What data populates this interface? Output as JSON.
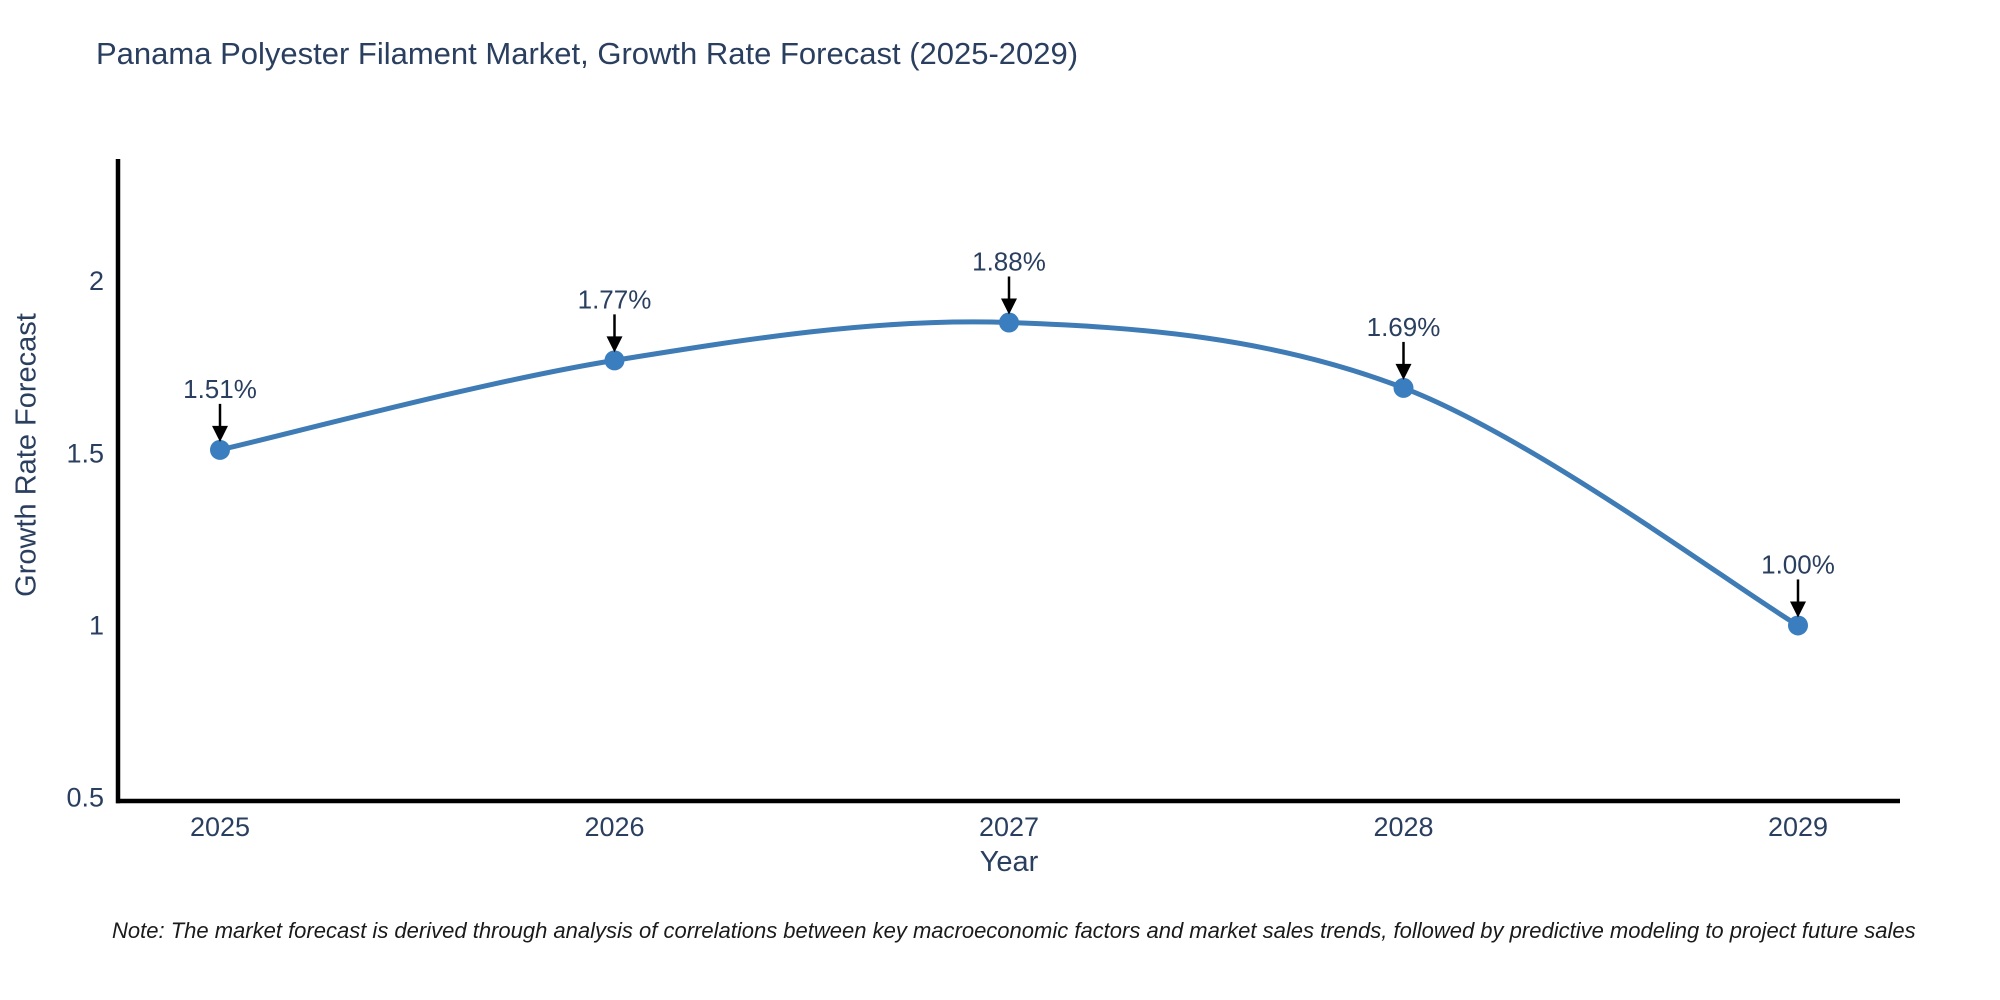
{
  "title": "Panama Polyester Filament Market, Growth Rate Forecast (2025-2029)",
  "note": "Note: The market forecast is derived through analysis of correlations between key macroeconomic factors and market sales trends, followed by predictive modeling to project future sales",
  "chart_data": {
    "type": "line",
    "title": "Panama Polyester Filament Market, Growth Rate Forecast (2025-2029)",
    "xlabel": "Year",
    "ylabel": "Growth Rate Forecast",
    "x": [
      2025,
      2026,
      2027,
      2028,
      2029
    ],
    "values": [
      1.51,
      1.77,
      1.88,
      1.69,
      1.0
    ],
    "point_labels": [
      "1.51%",
      "1.77%",
      "1.88%",
      "1.69%",
      "1.00%"
    ],
    "yticks": [
      0.5,
      1,
      1.5,
      2
    ],
    "ytick_labels": [
      "0.5",
      "1",
      "1.5",
      "2"
    ],
    "xtick_labels": [
      "2025",
      "2026",
      "2027",
      "2028",
      "2029"
    ],
    "ylim": [
      0.49,
      2.355
    ],
    "line_shape": "spline",
    "grid": false,
    "legend": "none",
    "colors": {
      "line": "#3f7cb5",
      "marker": "#3a7ebf",
      "axis": "#000000",
      "tick_text": "#2a3f5f",
      "annotation_text": "#2a3f5f",
      "arrow": "#000000",
      "background": "#ffffff"
    }
  }
}
